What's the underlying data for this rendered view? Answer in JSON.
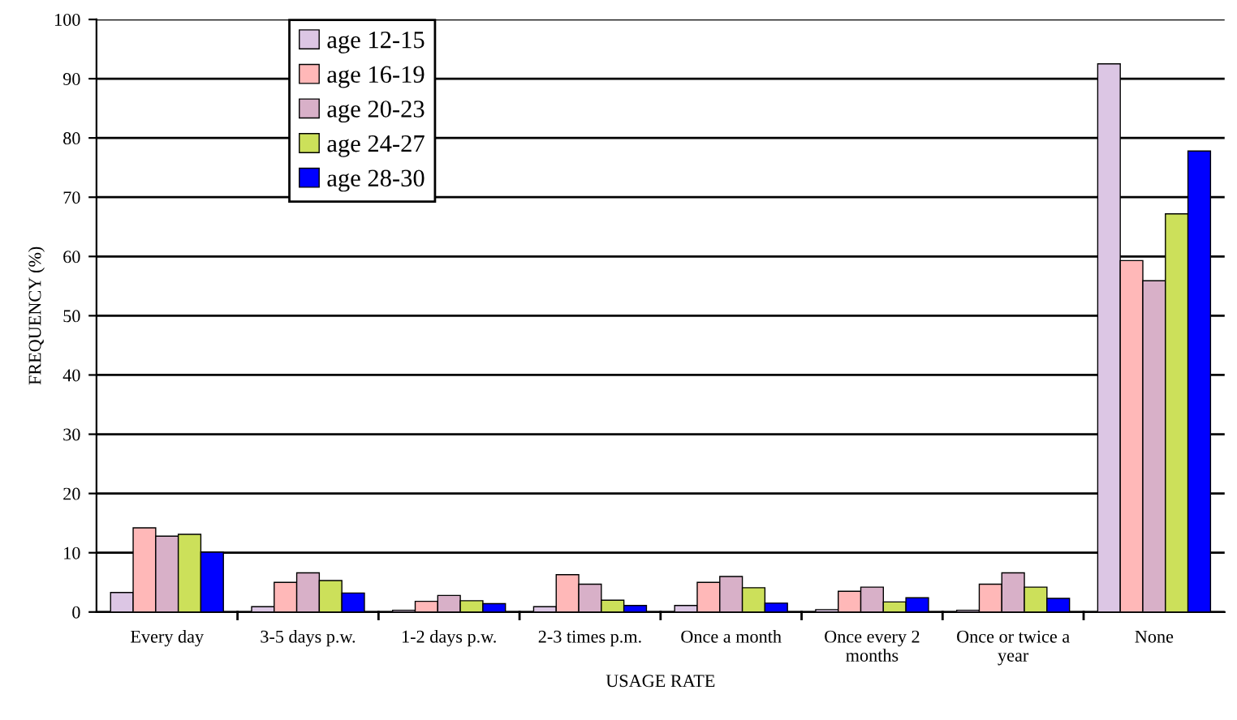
{
  "chart_data": {
    "type": "bar",
    "xlabel": "USAGE RATE",
    "ylabel": "FREQUENCY (%)",
    "categories": [
      "Every day",
      "3-5 days p.w.",
      "1-2 days p.w.",
      "2-3 times p.m.",
      "Once a month",
      "Once every 2\nmonths",
      "Once or twice a\nyear",
      "None"
    ],
    "series": [
      {
        "name": "age 12-15",
        "color": "#dcc6e4",
        "values": [
          3.3,
          0.9,
          0.3,
          0.9,
          1.1,
          0.4,
          0.3,
          92.5
        ]
      },
      {
        "name": "age 16-19",
        "color": "#ffb8b8",
        "values": [
          14.2,
          5.0,
          1.8,
          6.3,
          5.0,
          3.5,
          4.7,
          59.3
        ]
      },
      {
        "name": "age 20-23",
        "color": "#d8b0c8",
        "values": [
          12.8,
          6.6,
          2.8,
          4.7,
          6.0,
          4.2,
          6.6,
          55.9
        ]
      },
      {
        "name": "age 24-27",
        "color": "#cce05a",
        "values": [
          13.1,
          5.3,
          1.9,
          2.0,
          4.1,
          1.7,
          4.2,
          67.2
        ]
      },
      {
        "name": "age 28-30",
        "color": "#0000ff",
        "values": [
          10.1,
          3.2,
          1.4,
          1.1,
          1.5,
          2.4,
          2.3,
          77.8
        ]
      }
    ],
    "ylim": [
      0,
      100
    ],
    "yticks": [
      0,
      10,
      20,
      30,
      40,
      50,
      60,
      70,
      80,
      90,
      100
    ],
    "grid": "y",
    "legend": "top left"
  }
}
